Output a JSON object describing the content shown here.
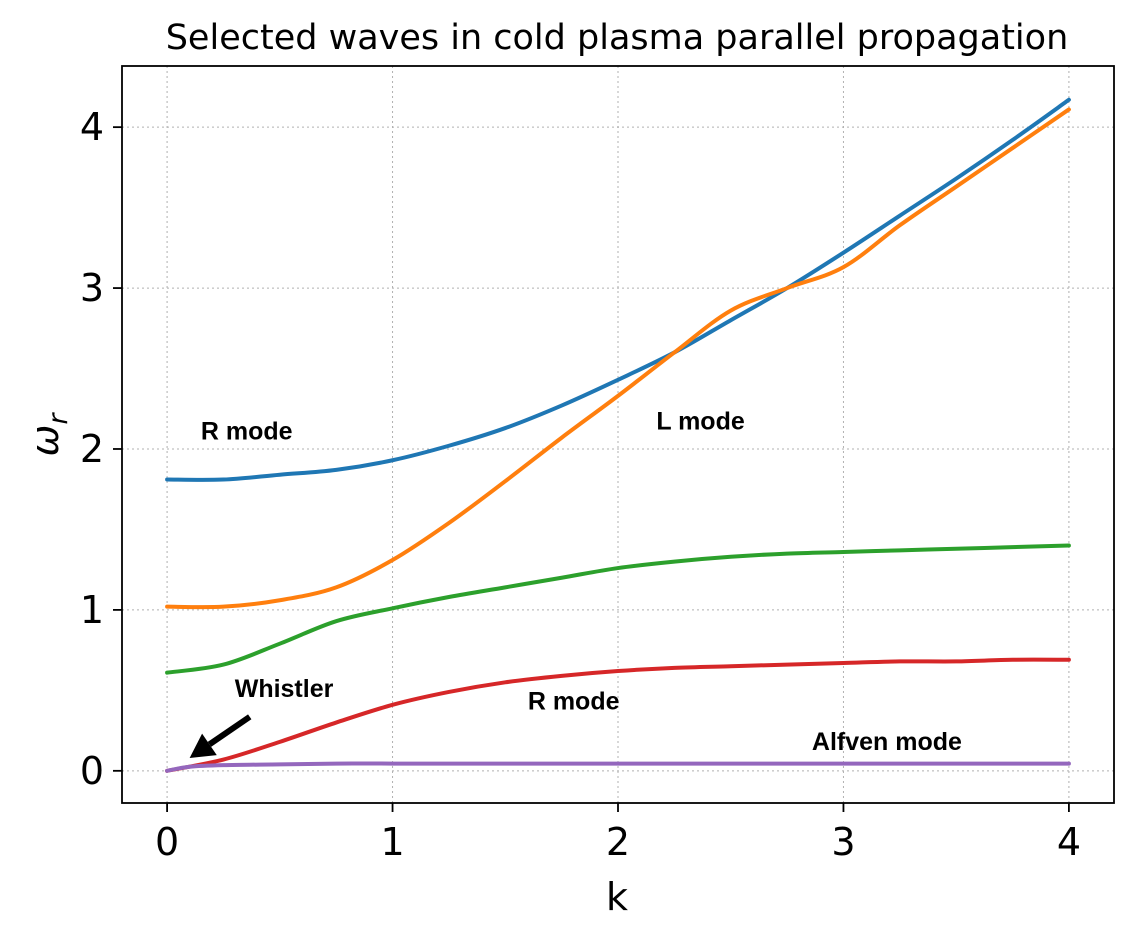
{
  "chart_data": {
    "type": "line",
    "title": "Selected waves in cold plasma parallel propagation",
    "xlabel": "k",
    "ylabel": "ω",
    "ylabel_sub": "r",
    "xlim": [
      -0.2,
      4.2
    ],
    "ylim": [
      -0.2,
      4.38
    ],
    "xticks": [
      0,
      1,
      2,
      3,
      4
    ],
    "yticks": [
      0,
      1,
      2,
      3,
      4
    ],
    "grid": true,
    "series": [
      {
        "color": "#1f77b4",
        "x": [
          0,
          0.25,
          0.5,
          0.75,
          1.0,
          1.25,
          1.5,
          1.75,
          2.0,
          2.25,
          2.5,
          2.75,
          3.0,
          3.25,
          3.5,
          3.75,
          4.0
        ],
        "y": [
          1.81,
          1.81,
          1.84,
          1.87,
          1.93,
          2.02,
          2.13,
          2.27,
          2.43,
          2.6,
          2.8,
          3.0,
          3.22,
          3.45,
          3.68,
          3.92,
          4.17
        ]
      },
      {
        "color": "#ff7f0e",
        "x": [
          0,
          0.25,
          0.5,
          0.75,
          1.0,
          1.25,
          1.5,
          1.75,
          2.0,
          2.25,
          2.5,
          2.75,
          3.0,
          3.25,
          3.5,
          3.75,
          4.0
        ],
        "y": [
          1.02,
          1.02,
          1.06,
          1.14,
          1.31,
          1.54,
          1.8,
          2.07,
          2.33,
          2.6,
          2.86,
          3.0,
          3.13,
          3.39,
          3.63,
          3.87,
          4.11
        ]
      },
      {
        "color": "#2ca02c",
        "x": [
          0,
          0.25,
          0.5,
          0.75,
          1.0,
          1.25,
          1.5,
          1.75,
          2.0,
          2.25,
          2.5,
          2.75,
          3.0,
          3.25,
          3.5,
          3.75,
          4.0
        ],
        "y": [
          0.61,
          0.66,
          0.79,
          0.93,
          1.01,
          1.08,
          1.14,
          1.2,
          1.26,
          1.3,
          1.33,
          1.35,
          1.36,
          1.37,
          1.38,
          1.39,
          1.4
        ]
      },
      {
        "color": "#d62728",
        "x": [
          0,
          0.25,
          0.5,
          0.75,
          1.0,
          1.25,
          1.5,
          1.75,
          2.0,
          2.25,
          2.5,
          2.75,
          3.0,
          3.25,
          3.5,
          3.75,
          4.0
        ],
        "y": [
          0.0,
          0.07,
          0.18,
          0.3,
          0.41,
          0.49,
          0.55,
          0.59,
          0.62,
          0.64,
          0.65,
          0.66,
          0.67,
          0.68,
          0.68,
          0.69,
          0.69
        ]
      },
      {
        "color": "#9467bd",
        "x": [
          0,
          0.1,
          0.25,
          0.5,
          0.75,
          1.0,
          1.5,
          2.0,
          2.5,
          3.0,
          3.5,
          4.0
        ],
        "y": [
          0.0,
          0.025,
          0.035,
          0.04,
          0.045,
          0.045,
          0.045,
          0.045,
          0.045,
          0.045,
          0.045,
          0.045
        ]
      }
    ],
    "annotations": [
      {
        "text": "R mode",
        "x": 0.15,
        "y": 2.06
      },
      {
        "text": "L mode",
        "x": 2.17,
        "y": 2.12
      },
      {
        "text": "Whistler",
        "x": 0.3,
        "y": 0.46,
        "arrow_to": [
          0.1,
          0.08
        ]
      },
      {
        "text": "R mode",
        "x": 1.6,
        "y": 0.38
      },
      {
        "text": "Alfven mode",
        "x": 2.86,
        "y": 0.13
      }
    ]
  }
}
